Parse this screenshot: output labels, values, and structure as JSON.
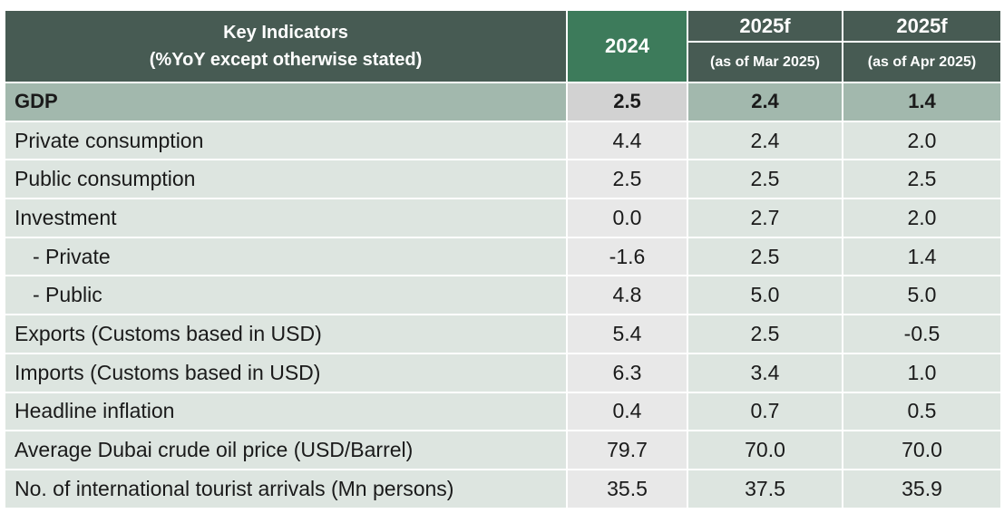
{
  "header": {
    "indicator_line1": "Key Indicators",
    "indicator_line2": "(%YoY except otherwise stated)",
    "col_2024": "2024",
    "col_mar_year": "2025f",
    "col_mar_sub": "(as of Mar 2025)",
    "col_apr_year": "2025f",
    "col_apr_sub": "(as of Apr 2025)"
  },
  "rows": [
    {
      "label": "GDP",
      "v2024": "2.5",
      "vmar": "2.4",
      "vapr": "1.4"
    },
    {
      "label": "Private consumption",
      "v2024": "4.4",
      "vmar": "2.4",
      "vapr": "2.0"
    },
    {
      "label": "Public consumption",
      "v2024": "2.5",
      "vmar": "2.5",
      "vapr": "2.5"
    },
    {
      "label": "Investment",
      "v2024": "0.0",
      "vmar": "2.7",
      "vapr": "2.0"
    },
    {
      "label": "- Private",
      "v2024": "-1.6",
      "vmar": "2.5",
      "vapr": "1.4"
    },
    {
      "label": "- Public",
      "v2024": "4.8",
      "vmar": "5.0",
      "vapr": "5.0"
    },
    {
      "label": "Exports (Customs based in USD)",
      "v2024": "5.4",
      "vmar": "2.5",
      "vapr": "-0.5"
    },
    {
      "label": "Imports (Customs based in USD)",
      "v2024": "6.3",
      "vmar": "3.4",
      "vapr": "1.0"
    },
    {
      "label": "Headline inflation",
      "v2024": "0.4",
      "vmar": "0.7",
      "vapr": "0.5"
    },
    {
      "label": "Average Dubai crude oil price (USD/Barrel)",
      "v2024": "79.7",
      "vmar": "70.0",
      "vapr": "70.0"
    },
    {
      "label": "No. of international tourist arrivals (Mn persons)",
      "v2024": "35.5",
      "vmar": "37.5",
      "vapr": "35.9"
    }
  ],
  "colors": {
    "header_bg": "#475b53",
    "header_2024_bg": "#3d7b5b",
    "row_bg": "#dde5e0",
    "col_2024_bg": "#e8e8e8",
    "gdp_row_bg": "#a2b8ad",
    "gdp_2024_bg": "#d2d2d2"
  }
}
